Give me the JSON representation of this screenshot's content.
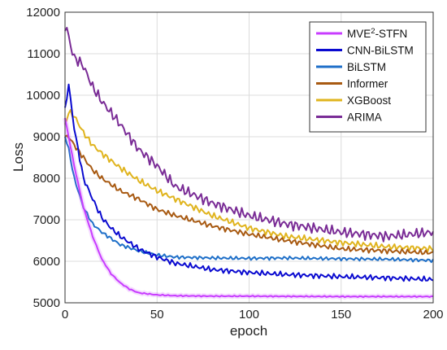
{
  "chart_data": {
    "type": "line",
    "title": "",
    "xlabel": "epoch",
    "ylabel": "Loss",
    "xlim": [
      0,
      200
    ],
    "ylim": [
      5000,
      12000
    ],
    "xticks": [
      0,
      50,
      100,
      150,
      200
    ],
    "yticks": [
      5000,
      6000,
      7000,
      8000,
      9000,
      10000,
      11000,
      12000
    ],
    "grid": true,
    "legend_position": "top-right",
    "series": [
      {
        "name": "MVE2-STFN",
        "label_base": "MVE",
        "label_sup": "2",
        "label_rest": "-STFN",
        "color": "#c83cff",
        "x": [
          0,
          5,
          10,
          15,
          20,
          25,
          30,
          35,
          40,
          50,
          60,
          80,
          100,
          120,
          150,
          170,
          200
        ],
        "y": [
          9450,
          8300,
          7300,
          6600,
          6050,
          5700,
          5480,
          5330,
          5240,
          5190,
          5170,
          5160,
          5160,
          5155,
          5150,
          5150,
          5150
        ]
      },
      {
        "name": "CNN-BiLSTM",
        "color": "#0a0ad0",
        "x": [
          0,
          2,
          5,
          10,
          15,
          20,
          25,
          30,
          40,
          50,
          60,
          80,
          100,
          120,
          150,
          175,
          200
        ],
        "y": [
          9700,
          10250,
          9200,
          8000,
          7500,
          7050,
          6800,
          6600,
          6300,
          6100,
          5950,
          5800,
          5730,
          5680,
          5630,
          5600,
          5560
        ]
      },
      {
        "name": "BiLSTM",
        "color": "#1e6fc8",
        "x": [
          0,
          2,
          5,
          10,
          15,
          20,
          25,
          30,
          40,
          50,
          60,
          80,
          100,
          120,
          150,
          175,
          200
        ],
        "y": [
          9000,
          8700,
          8000,
          7300,
          6900,
          6700,
          6550,
          6400,
          6250,
          6150,
          6100,
          6080,
          6070,
          6080,
          6060,
          6050,
          6020
        ]
      },
      {
        "name": "Informer",
        "color": "#a85a12",
        "x": [
          0,
          2,
          5,
          10,
          15,
          20,
          30,
          40,
          50,
          60,
          80,
          100,
          120,
          150,
          175,
          200
        ],
        "y": [
          9000,
          9000,
          8800,
          8500,
          8200,
          8000,
          7700,
          7500,
          7250,
          7100,
          6850,
          6650,
          6500,
          6300,
          6250,
          6200
        ]
      },
      {
        "name": "XGBoost",
        "color": "#e0b41e",
        "x": [
          0,
          2,
          5,
          10,
          15,
          20,
          30,
          40,
          50,
          60,
          80,
          100,
          120,
          150,
          175,
          200
        ],
        "y": [
          9300,
          9600,
          9500,
          9100,
          8800,
          8600,
          8250,
          7950,
          7700,
          7500,
          7100,
          6800,
          6600,
          6450,
          6350,
          6300
        ]
      },
      {
        "name": "ARIMA",
        "color": "#7a2c96",
        "x": [
          0,
          1,
          3,
          5,
          8,
          10,
          15,
          20,
          30,
          40,
          50,
          60,
          80,
          100,
          120,
          150,
          175,
          200
        ],
        "y": [
          11550,
          11600,
          11200,
          10900,
          10800,
          10700,
          10200,
          9850,
          9300,
          8700,
          8300,
          7800,
          7400,
          7100,
          6900,
          6700,
          6600,
          6700
        ]
      }
    ]
  }
}
